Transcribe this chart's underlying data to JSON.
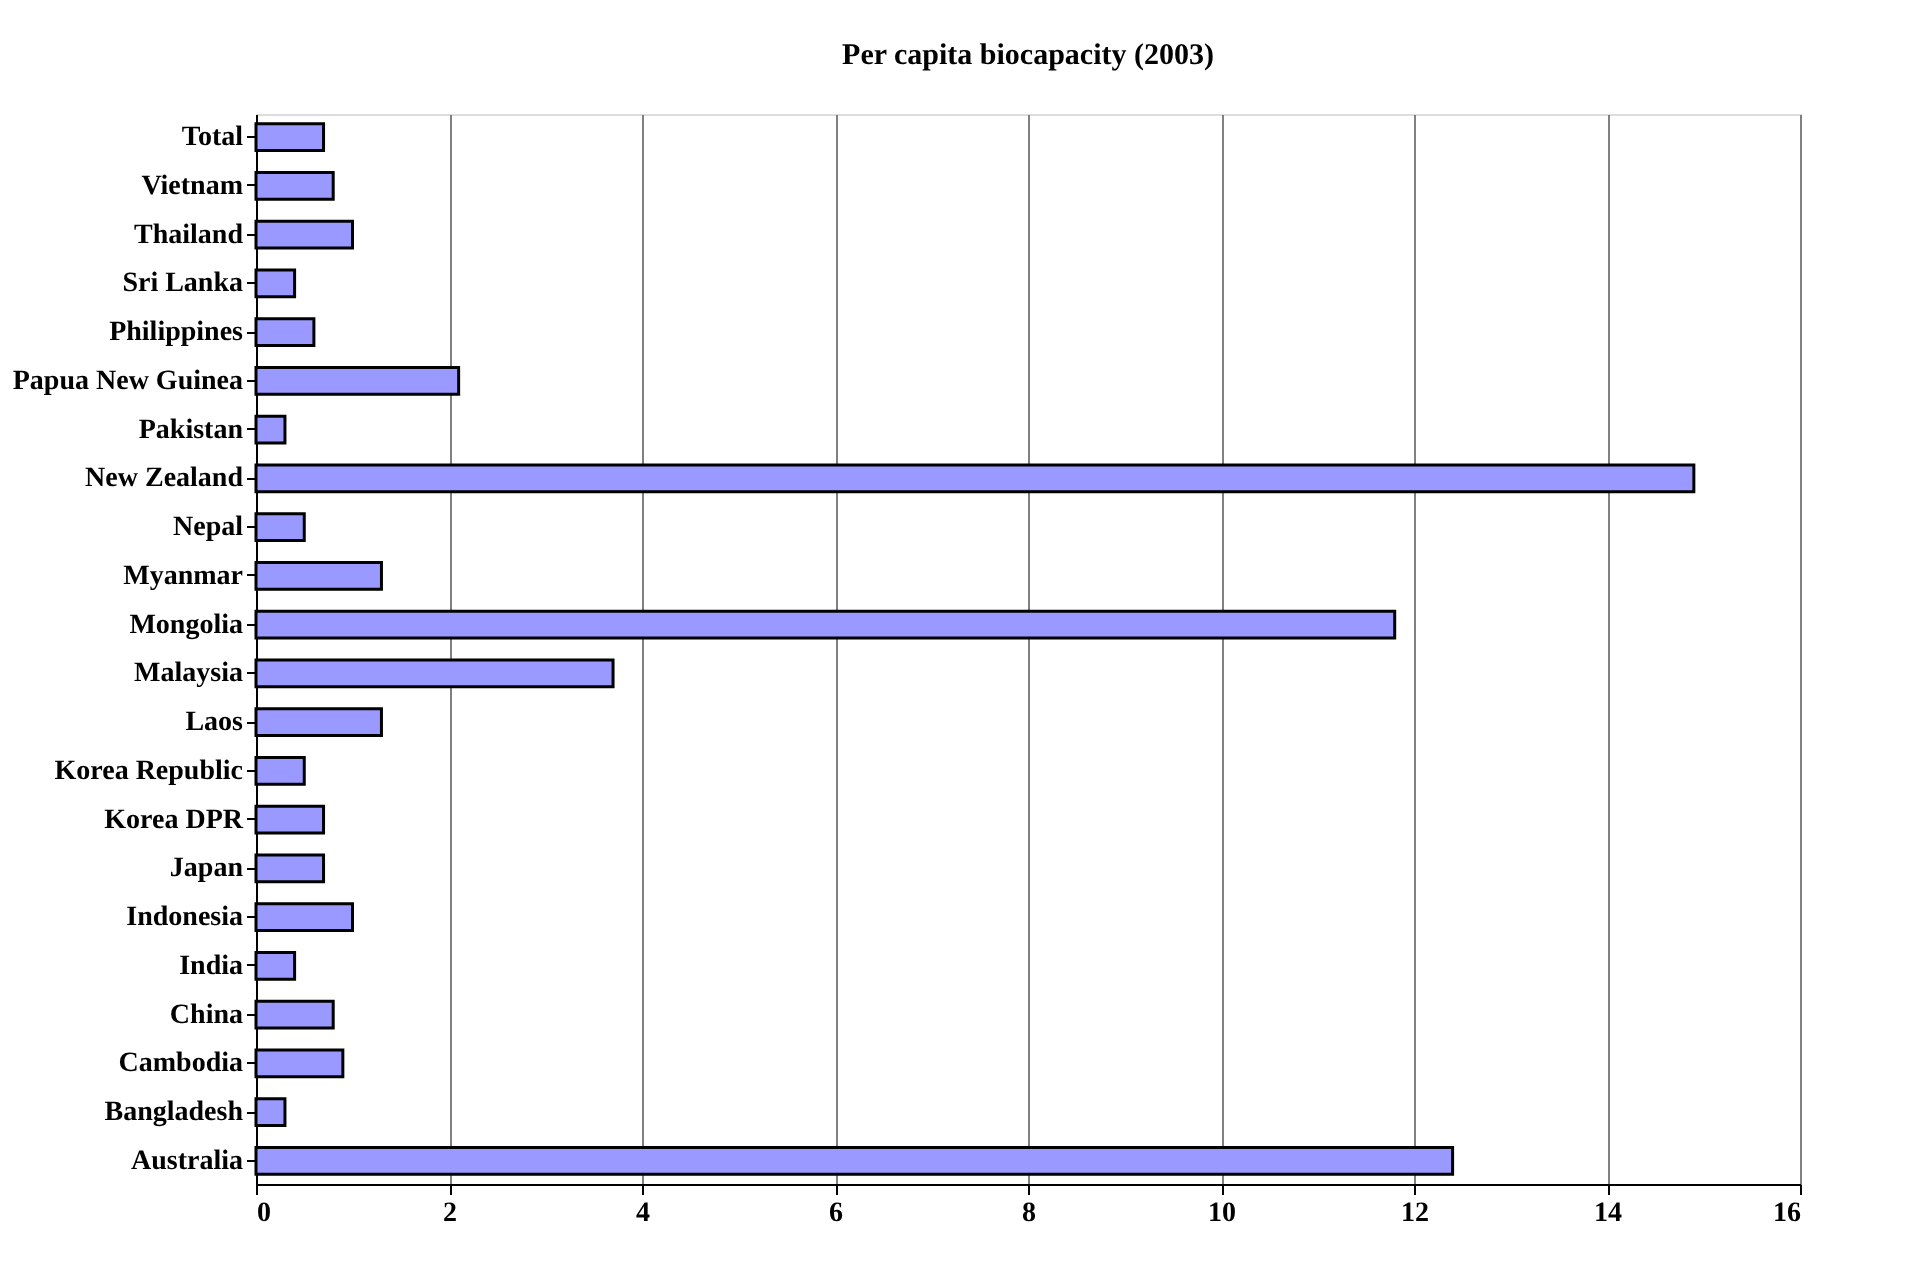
{
  "chart_data": {
    "type": "bar",
    "orientation": "horizontal",
    "title": "Per capita biocapacity (2003)",
    "categories": [
      "Total",
      "Vietnam",
      "Thailand",
      "Sri Lanka",
      "Philippines",
      "Papua New Guinea",
      "Pakistan",
      "New Zealand",
      "Nepal",
      "Myanmar",
      "Mongolia",
      "Malaysia",
      "Laos",
      "Korea Republic",
      "Korea DPR",
      "Japan",
      "Indonesia",
      "India",
      "China",
      "Cambodia",
      "Bangladesh",
      "Australia"
    ],
    "values": [
      0.7,
      0.8,
      1.0,
      0.4,
      0.6,
      2.1,
      0.3,
      14.9,
      0.5,
      1.3,
      11.8,
      3.7,
      1.3,
      0.5,
      0.7,
      0.7,
      1.0,
      0.4,
      0.8,
      0.9,
      0.3,
      12.4
    ],
    "color": "#9999ff",
    "xlim": [
      0,
      16
    ],
    "xticks": [
      0,
      2,
      4,
      6,
      8,
      10,
      12,
      14,
      16
    ],
    "grid": "x"
  }
}
